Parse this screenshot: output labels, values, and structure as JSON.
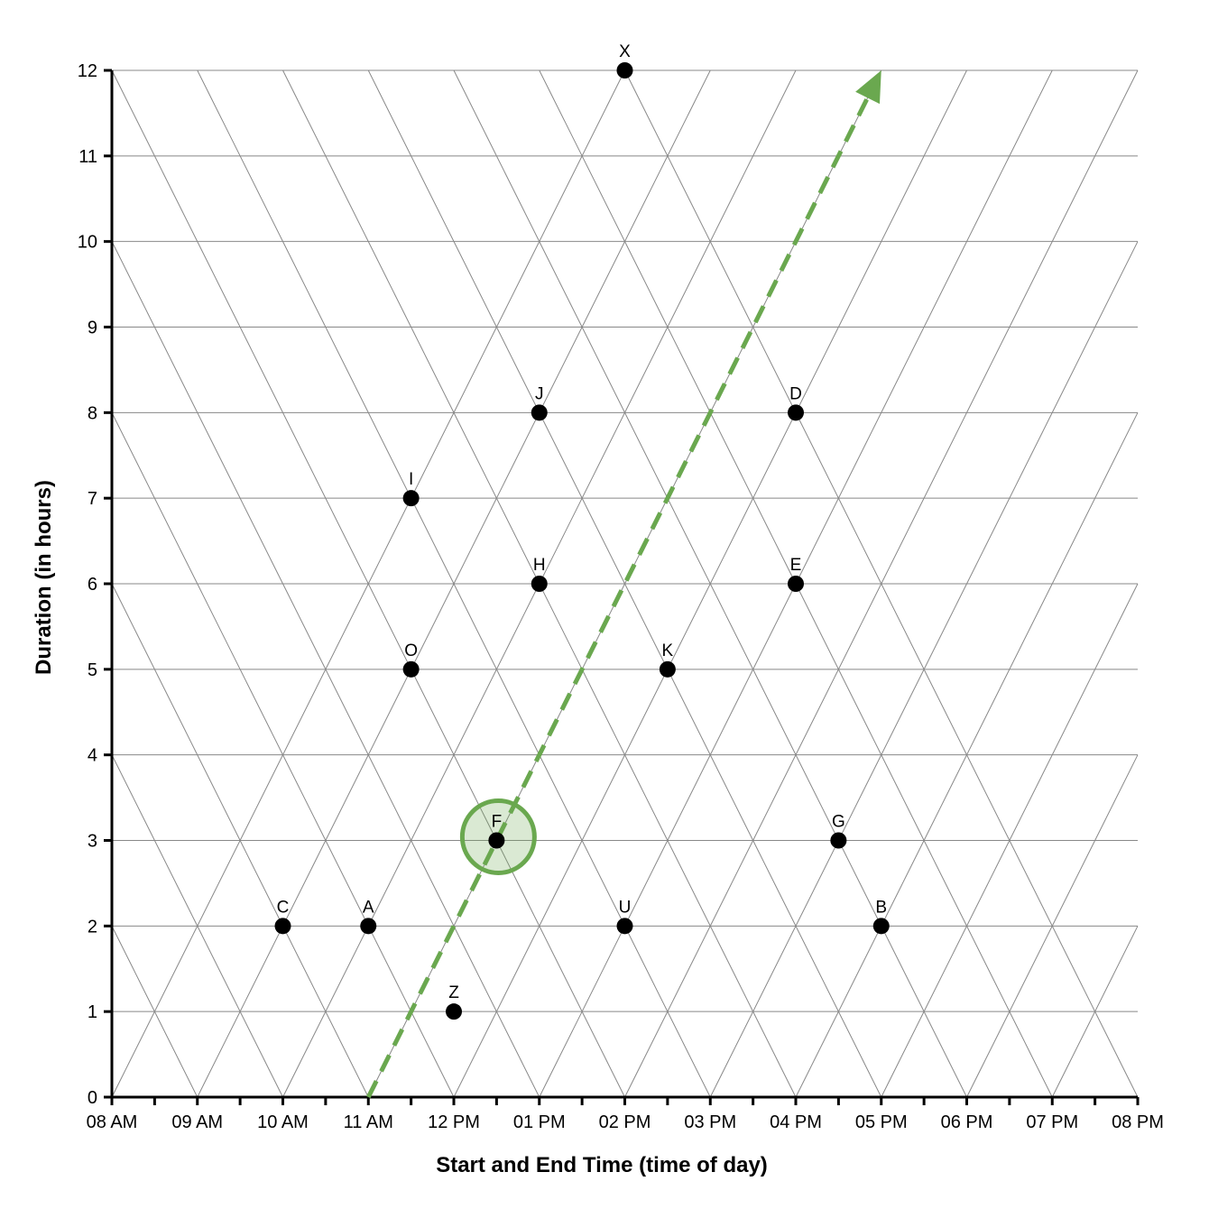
{
  "chart_data": {
    "type": "scatter",
    "xlabel": "Start and End Time (time of day)",
    "ylabel": "Duration (in hours)",
    "x_ticks": [
      "08 AM",
      "09 AM",
      "10 AM",
      "11 AM",
      "12 PM",
      "01 PM",
      "02 PM",
      "03 PM",
      "04 PM",
      "05 PM",
      "06 PM",
      "07 PM",
      "08 PM"
    ],
    "y_ticks": [
      "0",
      "1",
      "2",
      "3",
      "4",
      "5",
      "6",
      "7",
      "8",
      "9",
      "10",
      "11",
      "12"
    ],
    "xlim": [
      8,
      20
    ],
    "ylim": [
      0,
      12
    ],
    "grid": true,
    "points": [
      {
        "label": "X",
        "midpoint": 14.0,
        "duration": 12
      },
      {
        "label": "J",
        "midpoint": 13.0,
        "duration": 8
      },
      {
        "label": "D",
        "midpoint": 16.0,
        "duration": 8
      },
      {
        "label": "I",
        "midpoint": 11.5,
        "duration": 7
      },
      {
        "label": "H",
        "midpoint": 13.0,
        "duration": 6
      },
      {
        "label": "E",
        "midpoint": 16.0,
        "duration": 6
      },
      {
        "label": "O",
        "midpoint": 11.5,
        "duration": 5
      },
      {
        "label": "K",
        "midpoint": 14.5,
        "duration": 5
      },
      {
        "label": "F",
        "midpoint": 12.5,
        "duration": 3
      },
      {
        "label": "G",
        "midpoint": 16.5,
        "duration": 3
      },
      {
        "label": "C",
        "midpoint": 10.0,
        "duration": 2
      },
      {
        "label": "A",
        "midpoint": 11.0,
        "duration": 2
      },
      {
        "label": "U",
        "midpoint": 14.0,
        "duration": 2
      },
      {
        "label": "B",
        "midpoint": 17.0,
        "duration": 2
      },
      {
        "label": "Z",
        "midpoint": 12.0,
        "duration": 1
      }
    ],
    "highlight": {
      "label": "F",
      "color": "#6aa84f"
    },
    "arrow": {
      "from": {
        "midpoint": 11.0,
        "duration": 0
      },
      "to": {
        "midpoint": 17.0,
        "duration": 12
      },
      "color": "#6aa84f",
      "style": "dashed"
    }
  }
}
